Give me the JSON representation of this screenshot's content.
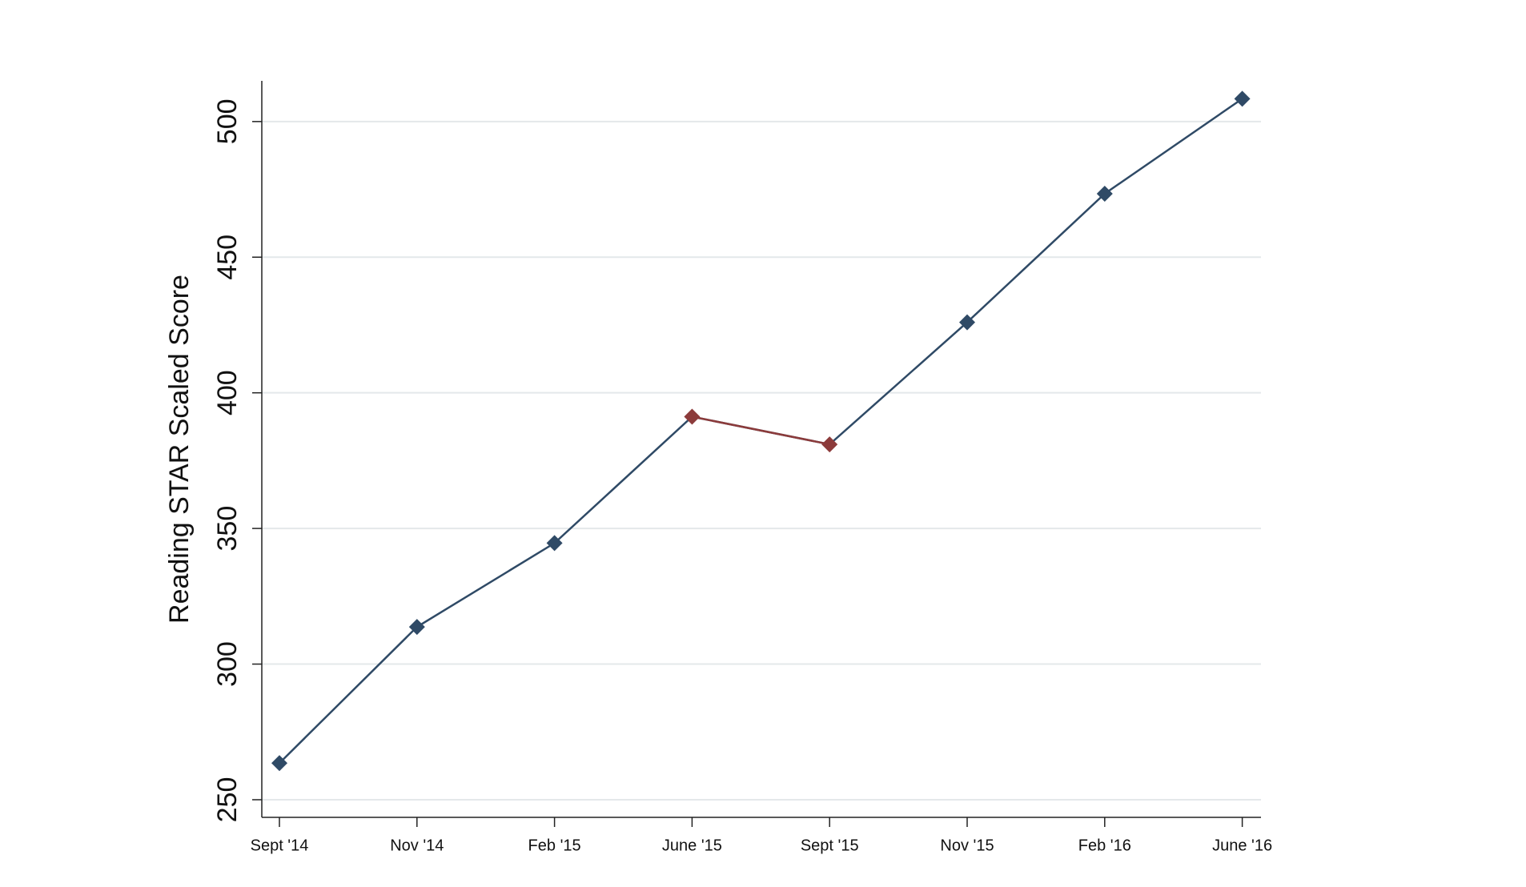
{
  "chart_data": {
    "type": "line",
    "y_label": "Reading STAR Scaled Score",
    "categories": [
      "Sept '14",
      "Nov '14",
      "Feb '15",
      "June '15",
      "Sept '15",
      "Nov '15",
      "Feb '16",
      "June '16"
    ],
    "series": [
      {
        "color": "#2f4a66",
        "values": [
          263.5,
          313.7,
          344.6,
          391.2,
          381,
          426,
          473.4,
          508.4
        ],
        "point_colors": [
          "#2f4a66",
          "#2f4a66",
          "#2f4a66",
          "#8c3b3b",
          "#8c3b3b",
          "#2f4a66",
          "#2f4a66",
          "#2f4a66"
        ]
      }
    ],
    "ylim": [
      243.5,
      515
    ],
    "yticks": [
      250,
      300,
      350,
      400,
      450,
      500
    ],
    "grid": true
  }
}
